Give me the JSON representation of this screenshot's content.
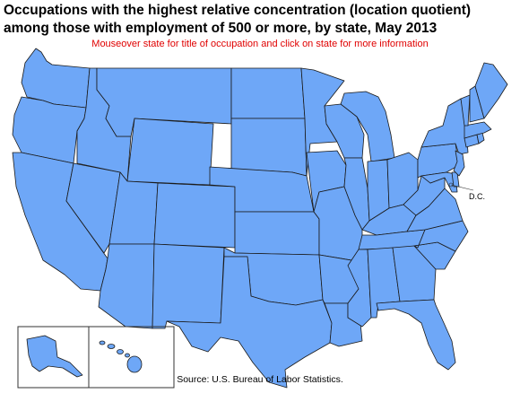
{
  "header": {
    "title": "Occupations with the highest relative concentration (location quotient) among those with employment of 500 or more, by state, May 2013",
    "instruction": "Mouseover state for title of occupation and click on state for more information"
  },
  "map": {
    "fill_color": "#6ea7f7",
    "border_color": "#1a1a1a",
    "dc_label": "D.C."
  },
  "footer": {
    "source": "Source:  U.S. Bureau of Labor Statistics."
  }
}
